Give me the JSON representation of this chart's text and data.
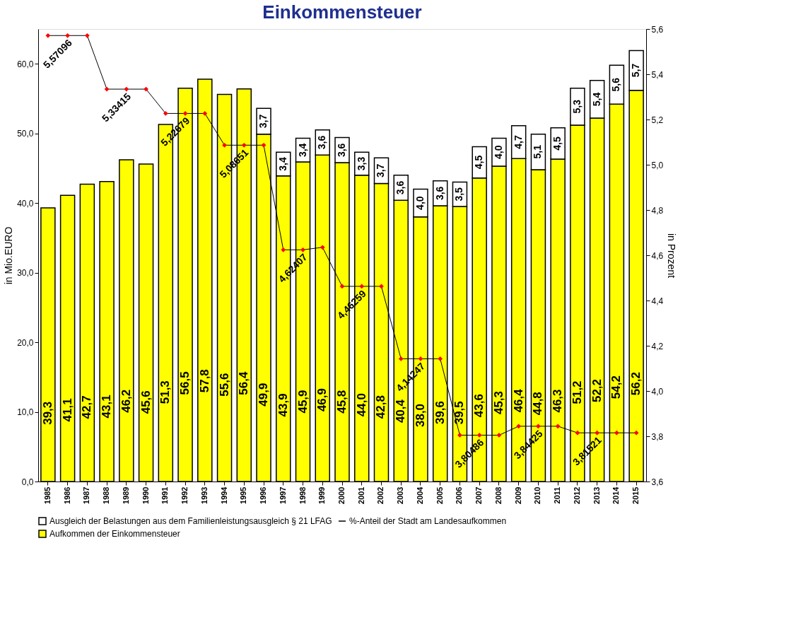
{
  "chart_data": {
    "type": "bar",
    "title": "Einkommensteuer",
    "ylabel": "in Mio.EURO",
    "y2label": "in Prozent",
    "categories": [
      "1985",
      "1986",
      "1987",
      "1988",
      "1989",
      "1990",
      "1991",
      "1992",
      "1993",
      "1994",
      "1995",
      "1996",
      "1997",
      "1998",
      "1999",
      "2000",
      "2001",
      "2002",
      "2003",
      "2004",
      "2005",
      "2006",
      "2007",
      "2008",
      "2009",
      "2010",
      "2011",
      "2012",
      "2013",
      "2014",
      "2015"
    ],
    "stacked": true,
    "series": [
      {
        "name": "Aufkommen der Einkommensteuer",
        "color": "#ffff00",
        "values": [
          39.3,
          41.1,
          42.7,
          43.1,
          46.2,
          45.6,
          51.3,
          56.5,
          57.8,
          55.6,
          56.4,
          49.9,
          43.9,
          45.9,
          46.9,
          45.8,
          44.0,
          42.8,
          40.4,
          38.0,
          39.6,
          39.5,
          43.6,
          45.3,
          46.4,
          44.8,
          46.3,
          51.2,
          52.2,
          54.2,
          56.2
        ],
        "value_labels": [
          "39,3",
          "41,1",
          "42,7",
          "43,1",
          "46,2",
          "45,6",
          "51,3",
          "56,5",
          "57,8",
          "55,6",
          "56,4",
          "49,9",
          "43,9",
          "45,9",
          "46,9",
          "45,8",
          "44,0",
          "42,8",
          "40,4",
          "38,0",
          "39,6",
          "39,5",
          "43,6",
          "45,3",
          "46,4",
          "44,8",
          "46,3",
          "51,2",
          "52,2",
          "54,2",
          "56,2"
        ]
      },
      {
        "name": "Ausgleich der Belastungen aus dem Familienleistungsausgleich § 21 LFAG",
        "color": "#ffffff",
        "values": [
          null,
          null,
          null,
          null,
          null,
          null,
          null,
          null,
          null,
          null,
          null,
          3.7,
          3.4,
          3.4,
          3.6,
          3.6,
          3.3,
          3.7,
          3.6,
          4.0,
          3.6,
          3.5,
          4.5,
          4.0,
          4.7,
          5.1,
          4.5,
          5.3,
          5.4,
          5.6,
          5.7
        ],
        "value_labels": [
          null,
          null,
          null,
          null,
          null,
          null,
          null,
          null,
          null,
          null,
          null,
          "3,7",
          "3,4",
          "3,4",
          "3,6",
          "3,6",
          "3,3",
          "3,7",
          "3,6",
          "4,0",
          "3,6",
          "3,5",
          "4,5",
          "4,0",
          "4,7",
          "5,1",
          "4,5",
          "5,3",
          "5,4",
          "5,6",
          "5,7"
        ]
      },
      {
        "name": "%-Anteil der Stadt am Landesaufkommen",
        "type": "line",
        "axis": "y2",
        "color": "#ff0000",
        "marker": "diamond",
        "values": [
          5.57096,
          5.57096,
          5.57096,
          5.33415,
          5.33415,
          5.33415,
          5.22679,
          5.22679,
          5.22679,
          5.08651,
          5.08651,
          5.08651,
          4.62407,
          4.62407,
          4.635,
          4.46259,
          4.46259,
          4.46259,
          4.14247,
          4.14247,
          4.14247,
          3.80486,
          3.80486,
          3.80486,
          3.84425,
          3.84425,
          3.84425,
          3.81521,
          3.81521,
          3.81521,
          3.81521
        ],
        "value_labels": [
          null,
          "5,57096",
          null,
          null,
          "5,33415",
          null,
          null,
          "5,22679",
          null,
          null,
          "5,08651",
          null,
          null,
          "4,62407",
          null,
          null,
          "4,46259",
          null,
          null,
          "4,14247",
          null,
          null,
          "3,80486",
          null,
          null,
          "3,84425",
          null,
          null,
          "3,81521",
          null,
          null
        ]
      }
    ],
    "ylim": [
      0,
      65
    ],
    "yticks": [
      {
        "value": 0,
        "label": "0,0"
      },
      {
        "value": 10,
        "label": "10,0"
      },
      {
        "value": 20,
        "label": "20,0"
      },
      {
        "value": 30,
        "label": "30,0"
      },
      {
        "value": 40,
        "label": "40,0"
      },
      {
        "value": 50,
        "label": "50,0"
      },
      {
        "value": 60,
        "label": "60,0"
      }
    ],
    "y2lim": [
      3.6,
      5.6
    ],
    "y2ticks": [
      {
        "value": 3.6,
        "label": "3,6"
      },
      {
        "value": 3.8,
        "label": "3,8"
      },
      {
        "value": 4.0,
        "label": "4,0"
      },
      {
        "value": 4.2,
        "label": "4,2"
      },
      {
        "value": 4.4,
        "label": "4,4"
      },
      {
        "value": 4.6,
        "label": "4,6"
      },
      {
        "value": 4.8,
        "label": "4,8"
      },
      {
        "value": 5.0,
        "label": "5,0"
      },
      {
        "value": 5.2,
        "label": "5,2"
      },
      {
        "value": 5.4,
        "label": "5,4"
      },
      {
        "value": 5.6,
        "label": "5,6"
      }
    ],
    "grid": false,
    "legend": "bottom"
  }
}
